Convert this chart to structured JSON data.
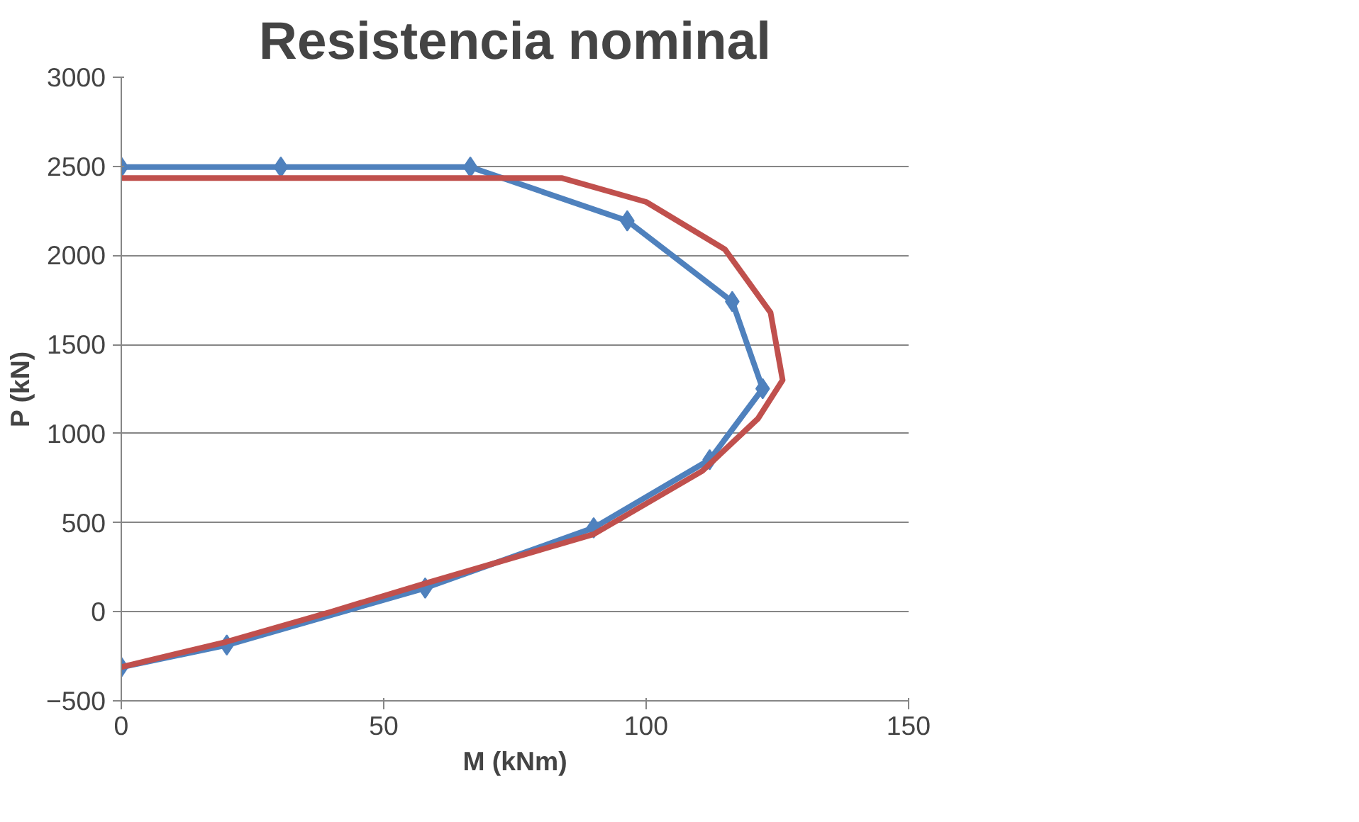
{
  "chart_data": {
    "type": "line",
    "title": "Resistencia nominal",
    "xlabel": "M (kNm)",
    "ylabel": "P (kN)",
    "xlim": [
      0,
      150
    ],
    "xticks": [
      0,
      50,
      100,
      150
    ],
    "ylim": [
      -500,
      3000
    ],
    "yticks": [
      -500,
      0,
      500,
      1000,
      1500,
      2000,
      2500,
      3000
    ],
    "grid": "y",
    "series": [
      {
        "color": "#4f81bd",
        "marker": "diamond",
        "x": [
          0,
          20.1,
          57.9,
          90,
          112.1,
          122.2,
          116.4,
          96.4,
          66.5,
          30.4,
          0
        ],
        "values": [
          -311,
          -187,
          133,
          471,
          853,
          1252,
          1741,
          2194,
          2496,
          2496,
          2496
        ]
      },
      {
        "color": "#c0504d",
        "marker": "none",
        "x": [
          0,
          20,
          40,
          58,
          90,
          110.7,
          121.3,
          126,
          123.7,
          115,
          100,
          84,
          0
        ],
        "values": [
          -311,
          -169,
          0,
          160,
          435,
          790,
          1084,
          1300,
          1679,
          2034,
          2300,
          2434,
          2434
        ]
      }
    ]
  }
}
